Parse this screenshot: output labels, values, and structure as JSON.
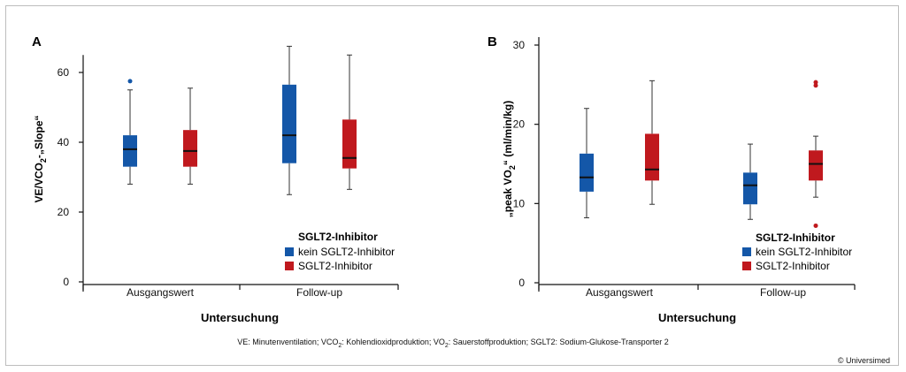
{
  "colors": {
    "kein": "#1457a8",
    "sglt2": "#c0191e",
    "axis": "#111111",
    "median": "#111111"
  },
  "legend_title": "SGLT2-Inhibitor",
  "legend_items": [
    "kein SGLT2-Inhibitor",
    "SGLT2-Inhibitor"
  ],
  "footnote": {
    "p1": "VE: Minutenventilation; VCO",
    "s1": "2",
    "p2": ": Kohlendioxidproduktion; VO",
    "s2": "2",
    "p3": ": Sauerstoffproduktion; SGLT2: Sodium-Glukose-Transporter 2"
  },
  "copyright": "© Universimed",
  "chart_data": [
    {
      "panel": "A",
      "type": "boxplot",
      "categories": [
        "Ausgangswert",
        "Follow-up"
      ],
      "xlabel": "Untersuchung",
      "ylabel": {
        "p1": "VE/VCO",
        "sub": "2",
        "p2": "-„Slope“"
      },
      "ylim": [
        0,
        65
      ],
      "yticks": [
        0,
        20,
        40,
        60
      ],
      "legend": "bottom-right",
      "series": [
        {
          "name": "kein SGLT2-Inhibitor",
          "color_key": "kein",
          "boxes": [
            {
              "min": 28,
              "q1": 33,
              "median": 38,
              "q3": 42,
              "max": 55,
              "outliers": [
                57.5
              ]
            },
            {
              "min": 25,
              "q1": 34,
              "median": 42,
              "q3": 56.5,
              "max": 67.5,
              "outliers": []
            }
          ]
        },
        {
          "name": "SGLT2-Inhibitor",
          "color_key": "sglt2",
          "boxes": [
            {
              "min": 28,
              "q1": 33,
              "median": 37.5,
              "q3": 43.5,
              "max": 55.5,
              "outliers": []
            },
            {
              "min": 26.5,
              "q1": 32.5,
              "median": 35.5,
              "q3": 46.5,
              "max": 65,
              "outliers": []
            }
          ]
        }
      ]
    },
    {
      "panel": "B",
      "type": "boxplot",
      "categories": [
        "Ausgangswert",
        "Follow-up"
      ],
      "xlabel": "Untersuchung",
      "ylabel": {
        "p1": "„peak VO",
        "sub": "2",
        "p2": "“ (ml/min/kg)"
      },
      "ylim": [
        0,
        31
      ],
      "yticks": [
        0,
        10,
        20,
        30
      ],
      "legend": "bottom-right",
      "series": [
        {
          "name": "kein SGLT2-Inhibitor",
          "color_key": "kein",
          "boxes": [
            {
              "min": 8.2,
              "q1": 11.5,
              "median": 13.3,
              "q3": 16.3,
              "max": 22,
              "outliers": []
            },
            {
              "min": 8,
              "q1": 9.9,
              "median": 12.3,
              "q3": 13.9,
              "max": 17.5,
              "outliers": []
            }
          ]
        },
        {
          "name": "SGLT2-Inhibitor",
          "color_key": "sglt2",
          "boxes": [
            {
              "min": 9.9,
              "q1": 12.9,
              "median": 14.3,
              "q3": 18.8,
              "max": 25.5,
              "outliers": []
            },
            {
              "min": 10.8,
              "q1": 12.9,
              "median": 15,
              "q3": 16.7,
              "max": 18.5,
              "outliers": [
                25.3,
                24.9,
                7.2
              ]
            }
          ]
        }
      ]
    }
  ]
}
